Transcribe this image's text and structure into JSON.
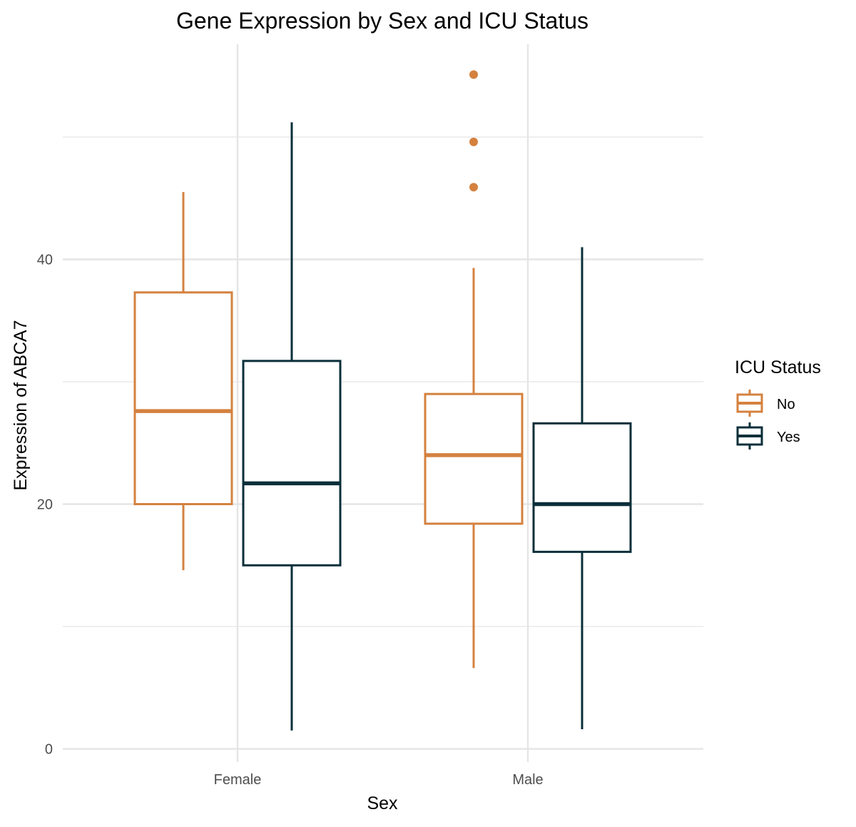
{
  "chart_data": {
    "type": "box",
    "title": "Gene Expression by Sex and ICU Status",
    "xlabel": "Sex",
    "ylabel": "Expression of ABCA7",
    "categories": [
      "Female",
      "Male"
    ],
    "ylim": [
      -1,
      57.5
    ],
    "yticks": [
      0,
      20,
      40
    ],
    "grid": true,
    "legend": {
      "title": "ICU Status",
      "position": "right",
      "entries": [
        "No",
        "Yes"
      ]
    },
    "colors": {
      "No": "#d4813f",
      "Yes": "#0b2f3a",
      "grid": "#e5e5e5"
    },
    "series": [
      {
        "name": "No",
        "boxes": [
          {
            "category": "Female",
            "whisker_low": 14.6,
            "q1": 20.0,
            "median": 27.6,
            "q3": 37.3,
            "whisker_high": 45.5,
            "outliers": []
          },
          {
            "category": "Male",
            "whisker_low": 6.6,
            "q1": 18.4,
            "median": 24.0,
            "q3": 29.0,
            "whisker_high": 39.3,
            "outliers": [
              45.9,
              49.6,
              55.1
            ]
          }
        ]
      },
      {
        "name": "Yes",
        "boxes": [
          {
            "category": "Female",
            "whisker_low": 1.5,
            "q1": 15.0,
            "median": 21.7,
            "q3": 31.7,
            "whisker_high": 51.2,
            "outliers": []
          },
          {
            "category": "Male",
            "whisker_low": 1.6,
            "q1": 16.1,
            "median": 20.0,
            "q3": 26.6,
            "whisker_high": 41.0,
            "outliers": []
          }
        ]
      }
    ]
  }
}
